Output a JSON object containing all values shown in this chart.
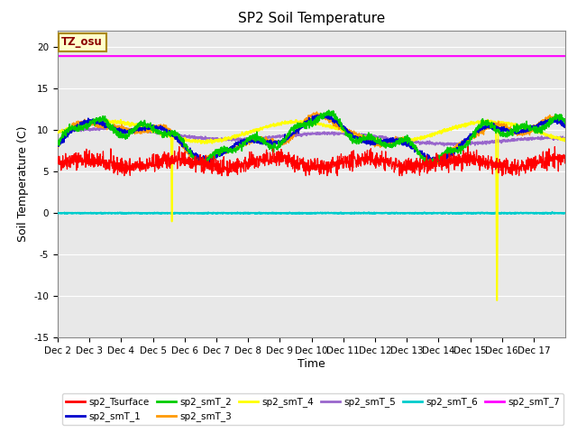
{
  "title": "SP2 Soil Temperature",
  "ylabel": "Soil Temperature (C)",
  "xlabel": "Time",
  "ylim": [
    -15,
    22
  ],
  "yticks": [
    -15,
    -10,
    -5,
    0,
    5,
    10,
    15,
    20
  ],
  "xlim": [
    0,
    16
  ],
  "xtick_labels": [
    "Dec 2",
    "Dec 3",
    "Dec 4",
    "Dec 5",
    "Dec 6",
    "Dec 7",
    "Dec 8",
    "Dec 9",
    "Dec 10",
    "Dec 11",
    "Dec 12",
    "Dec 13",
    "Dec 14",
    "Dec 15",
    "Dec 16",
    "Dec 17"
  ],
  "annotation_text": "TZ_osu",
  "colors": {
    "sp2_Tsurface": "#ff0000",
    "sp2_smT_1": "#0000cc",
    "sp2_smT_2": "#00cc00",
    "sp2_smT_3": "#ff9900",
    "sp2_smT_4": "#ffff00",
    "sp2_smT_5": "#9966cc",
    "sp2_smT_6": "#00cccc",
    "sp2_smT_7": "#ff00ff"
  },
  "background_color": "#e8e8e8",
  "fig_background": "#ffffff",
  "grid_color": "#ffffff",
  "title_fontsize": 11,
  "axis_label_fontsize": 9,
  "tick_fontsize": 7.5
}
